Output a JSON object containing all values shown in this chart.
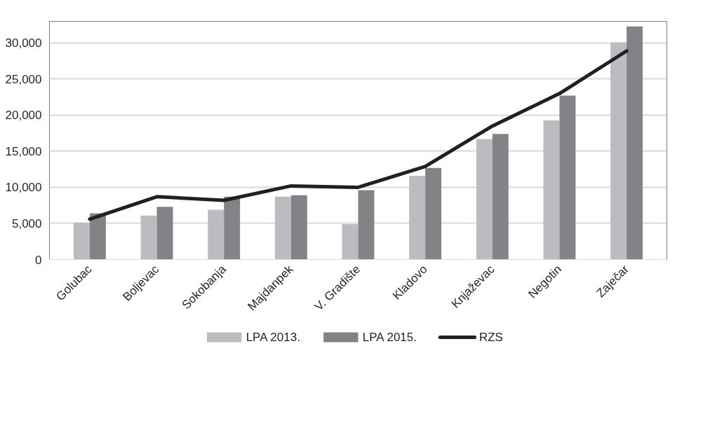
{
  "chart_data": {
    "type": "bar",
    "categories": [
      "Golubac",
      "Boljevac",
      "Sokobanja",
      "Majdanpek",
      "V. Gradište",
      "Kladovo",
      "Knjaževac",
      "Negotin",
      "Zaječar"
    ],
    "series": [
      {
        "name": "LPA 2013.",
        "color": "#bbbcc0",
        "values": [
          5100,
          6100,
          6900,
          8700,
          4900,
          11600,
          16700,
          19300,
          30100
        ]
      },
      {
        "name": "LPA 2015.",
        "color": "#828386",
        "values": [
          6400,
          7300,
          8700,
          8900,
          9600,
          12700,
          17400,
          22700,
          32300
        ]
      },
      {
        "name": "RZS",
        "type": "line",
        "color": "#231f20",
        "values": [
          5600,
          8700,
          8200,
          10200,
          10000,
          12900,
          18500,
          23000,
          28900
        ]
      }
    ],
    "ylim": [
      0,
      33000
    ],
    "yticks": [
      0,
      {
        "value": 5000,
        "label": "5,000"
      },
      {
        "value": 10000,
        "label": "10,000"
      },
      {
        "value": 15000,
        "label": "15,000"
      },
      {
        "value": 20000,
        "label": "20,000"
      },
      {
        "value": 25000,
        "label": "25,000"
      },
      {
        "value": 30000,
        "label": "30,000"
      }
    ],
    "grid": "y",
    "legend": "bottom"
  }
}
